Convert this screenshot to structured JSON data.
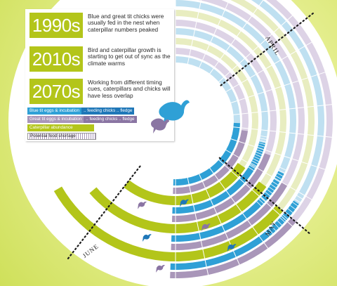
{
  "eras": [
    {
      "year": "1990s",
      "text": "Blue and great tit chicks were usually fed in the nest when caterpillar numbers peaked"
    },
    {
      "year": "2010s",
      "text": "Bird and caterpillar growth is starting to get out of sync as the climate warms"
    },
    {
      "year": "2070s",
      "text": "Working from different timing cues, caterpillars and chicks will have less overlap"
    }
  ],
  "legend": {
    "blue_tit_label": "Blue tit eggs & incubation",
    "blue_tit_feeding": ".. feeding chicks .. fledge",
    "great_tit_label": "Great tit eggs & incubation",
    "great_tit_feeding": ".. feeding chicks .. fledge",
    "caterpillar": "Caterpillar abundance",
    "shortage": "Potential food shortage"
  },
  "months": {
    "april": "APRIL",
    "may": "MAY",
    "june": "JUNE"
  },
  "colors": {
    "blue_tit": "#2fa0d6",
    "blue_tit_light": "#bfe0f1",
    "great_tit": "#a996b9",
    "great_tit_light": "#ddd3e6",
    "caterpillar": "#b3c51a",
    "caterpillar_light": "#e8edc0"
  },
  "icons": [
    "blue-tit-bird-icon",
    "great-tit-bird-icon"
  ]
}
